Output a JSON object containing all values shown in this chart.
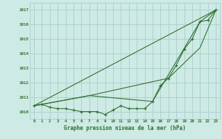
{
  "title": "Graphe pression niveau de la mer (hPa)",
  "background_color": "#cdeae4",
  "grid_color": "#aacccc",
  "line_color": "#2d6e2d",
  "xlim": [
    -0.5,
    23.5
  ],
  "ylim": [
    1009.5,
    1017.5
  ],
  "yticks": [
    1010,
    1011,
    1012,
    1013,
    1014,
    1015,
    1016,
    1017
  ],
  "xticks": [
    0,
    1,
    2,
    3,
    4,
    5,
    6,
    7,
    8,
    9,
    10,
    11,
    12,
    13,
    14,
    15,
    16,
    17,
    18,
    19,
    20,
    21,
    22,
    23
  ],
  "series_main_x": [
    0,
    1,
    2,
    3,
    4,
    5,
    6,
    7,
    8,
    9,
    10,
    11,
    12,
    13,
    14,
    15,
    16,
    17,
    18,
    19,
    20,
    21,
    22,
    23
  ],
  "series_main_y": [
    1010.4,
    1010.5,
    1010.3,
    1010.2,
    1010.2,
    1010.1,
    1010.0,
    1010.0,
    1010.0,
    1009.8,
    1010.1,
    1010.4,
    1010.2,
    1010.2,
    1010.2,
    1010.7,
    1011.8,
    1012.3,
    1013.2,
    1014.3,
    1015.0,
    1016.2,
    1016.3,
    1017.0
  ],
  "series_line1_x": [
    0,
    7,
    23
  ],
  "series_line1_y": [
    1010.4,
    1011.1,
    1017.0
  ],
  "series_line2_x": [
    0,
    7,
    17,
    21,
    23
  ],
  "series_line2_y": [
    1010.4,
    1011.1,
    1012.3,
    1014.4,
    1017.0
  ],
  "series_line3_x": [
    0,
    7,
    15,
    21,
    23
  ],
  "series_line3_y": [
    1010.4,
    1011.1,
    1010.7,
    1016.2,
    1017.0
  ]
}
